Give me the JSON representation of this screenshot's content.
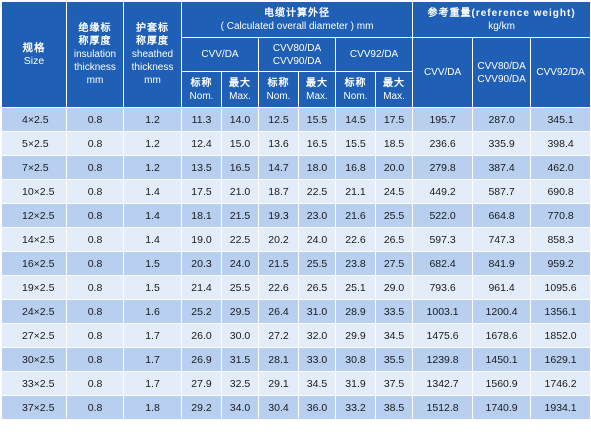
{
  "header": {
    "size": {
      "zh": "规格",
      "en": "Size"
    },
    "insulation": {
      "zh": "绝缘标",
      "zh2": "称厚度",
      "en": "insulation",
      "en2": "thickness",
      "unit": "mm"
    },
    "sheath": {
      "zh": "护套标",
      "zh2": "称厚度",
      "en": "sheathed",
      "en2": "thickness",
      "unit": "mm"
    },
    "diameter": {
      "zh": "电缆计算外径",
      "en": "( Calculated overall diameter ) mm"
    },
    "weight": {
      "zh": "参考重量(reference weight)",
      "unit": "kg/km"
    },
    "groups": {
      "cvv": "CVV/DA",
      "cvv80_a": "CVV80/DA",
      "cvv80_b": "CVV90/DA",
      "cvv92": "CVV92/DA"
    },
    "nominal": {
      "zh": "标称",
      "en": "Nom."
    },
    "maximum": {
      "zh": "最大",
      "en": "Max."
    }
  },
  "rows": [
    [
      "4×2.5",
      "0.8",
      "1.2",
      "11.3",
      "14.0",
      "12.5",
      "15.5",
      "14.5",
      "17.5",
      "195.7",
      "287.0",
      "345.1"
    ],
    [
      "5×2.5",
      "0.8",
      "1.2",
      "12.4",
      "15.0",
      "13.6",
      "16.5",
      "15.5",
      "18.5",
      "236.6",
      "335.9",
      "398.4"
    ],
    [
      "7×2.5",
      "0.8",
      "1.2",
      "13.5",
      "16.5",
      "14.7",
      "18.0",
      "16.8",
      "20.0",
      "279.8",
      "387.4",
      "462.0"
    ],
    [
      "10×2.5",
      "0.8",
      "1.4",
      "17.5",
      "21.0",
      "18.7",
      "22.5",
      "21.1",
      "24.5",
      "449.2",
      "587.7",
      "690.8"
    ],
    [
      "12×2.5",
      "0.8",
      "1.4",
      "18.1",
      "21.5",
      "19.3",
      "23.0",
      "21.6",
      "25.5",
      "522.0",
      "664.8",
      "770.8"
    ],
    [
      "14×2.5",
      "0.8",
      "1.4",
      "19.0",
      "22.5",
      "20.2",
      "24.0",
      "22.6",
      "26.5",
      "597.3",
      "747.3",
      "858.3"
    ],
    [
      "16×2.5",
      "0.8",
      "1.5",
      "20.3",
      "24.0",
      "21.5",
      "25.5",
      "23.8",
      "27.5",
      "682.4",
      "841.9",
      "959.2"
    ],
    [
      "19×2.5",
      "0.8",
      "1.5",
      "21.4",
      "25.5",
      "22.6",
      "26.5",
      "25.1",
      "29.0",
      "793.6",
      "961.4",
      "1095.6"
    ],
    [
      "24×2.5",
      "0.8",
      "1.6",
      "25.2",
      "29.5",
      "26.4",
      "31.0",
      "28.9",
      "33.5",
      "1003.1",
      "1200.4",
      "1356.1"
    ],
    [
      "27×2.5",
      "0.8",
      "1.7",
      "26.0",
      "30.0",
      "27.2",
      "32.0",
      "29.9",
      "34.5",
      "1475.6",
      "1678.6",
      "1852.0"
    ],
    [
      "30×2.5",
      "0.8",
      "1.7",
      "26.9",
      "31.5",
      "28.1",
      "33.0",
      "30.8",
      "35.5",
      "1239.8",
      "1450.1",
      "1629.1"
    ],
    [
      "33×2.5",
      "0.8",
      "1.7",
      "27.9",
      "32.5",
      "29.1",
      "34.5",
      "31.9",
      "37.5",
      "1342.7",
      "1560.9",
      "1746.2"
    ],
    [
      "37×2.5",
      "0.8",
      "1.8",
      "29.2",
      "34.0",
      "30.4",
      "36.0",
      "33.2",
      "38.5",
      "1512.8",
      "1740.9",
      "1934.1"
    ]
  ],
  "colors": {
    "header": "#1f5fb5",
    "row_dark": "#b8cff0",
    "row_light": "#e3edf9"
  }
}
